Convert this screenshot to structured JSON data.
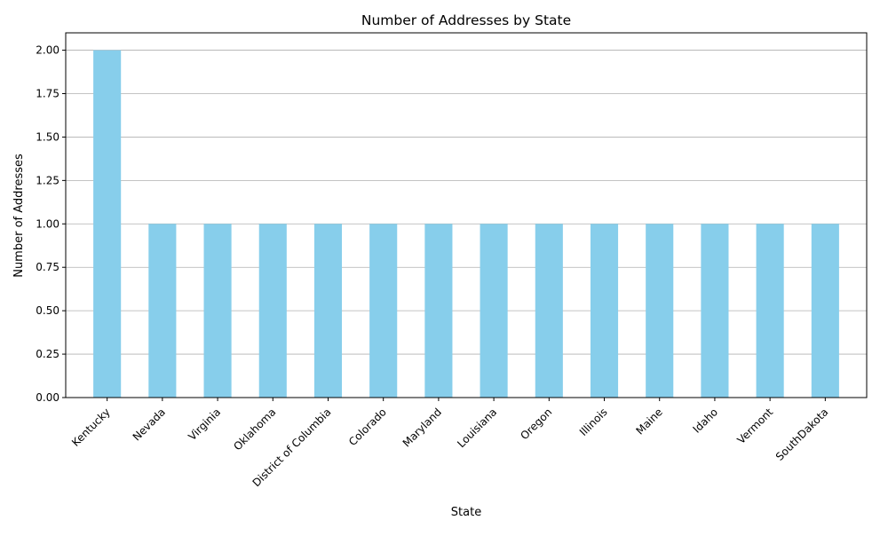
{
  "chart_data": {
    "type": "bar",
    "title": "Number of Addresses by State",
    "xlabel": "State",
    "ylabel": "Number of Addresses",
    "categories": [
      "Kentucky",
      "Nevada",
      "Virginia",
      "Oklahoma",
      "District of Columbia",
      "Colorado",
      "Maryland",
      "Louisiana",
      "Oregon",
      "Illinois",
      "Maine",
      "Idaho",
      "Vermont",
      "SouthDakota"
    ],
    "values": [
      2,
      1,
      1,
      1,
      1,
      1,
      1,
      1,
      1,
      1,
      1,
      1,
      1,
      1
    ],
    "ylim": [
      0,
      2.1
    ],
    "yticks": [
      "0.00",
      "0.25",
      "0.50",
      "0.75",
      "1.00",
      "1.25",
      "1.50",
      "1.75",
      "2.00"
    ],
    "grid": "horizontal",
    "legend": "none",
    "colors": {
      "bar": "#87CEEB",
      "grid": "#b0b0b0",
      "axis": "#000000"
    }
  }
}
